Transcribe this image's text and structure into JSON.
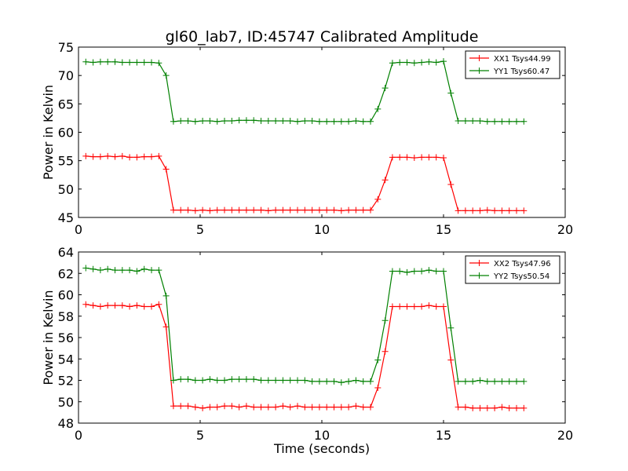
{
  "chart_data": {
    "title": "gl60_lab7, ID:45747 Calibrated Amplitude",
    "xlabel": "Time (seconds)",
    "colors": {
      "xx": "#ff0000",
      "yy": "#008000"
    },
    "x": [
      0.3,
      0.6,
      0.9,
      1.2,
      1.5,
      1.8,
      2.1,
      2.4,
      2.7,
      3.0,
      3.3,
      3.6,
      3.9,
      4.2,
      4.5,
      4.8,
      5.1,
      5.4,
      5.7,
      6.0,
      6.3,
      6.6,
      6.9,
      7.2,
      7.5,
      7.8,
      8.1,
      8.4,
      8.7,
      9.0,
      9.3,
      9.6,
      9.9,
      10.2,
      10.5,
      10.8,
      11.1,
      11.4,
      11.7,
      12.0,
      12.3,
      12.6,
      12.9,
      13.2,
      13.5,
      13.8,
      14.1,
      14.4,
      14.7,
      15.0,
      15.3,
      15.6,
      15.9,
      16.2,
      16.5,
      16.8,
      17.1,
      17.4,
      17.7,
      18.0,
      18.3
    ],
    "charts": [
      {
        "type": "line",
        "ylabel": "Power in Kelvin",
        "xlim": [
          0,
          20
        ],
        "ylim": [
          45,
          75
        ],
        "xticks": [
          "0",
          "5",
          "10",
          "15",
          "20"
        ],
        "xtick_values": [
          0,
          5,
          10,
          15,
          20
        ],
        "yticks": [
          "45",
          "50",
          "55",
          "60",
          "65",
          "70",
          "75"
        ],
        "ytick_values": [
          45,
          50,
          55,
          60,
          65,
          70,
          75
        ],
        "show_xlabel": false,
        "legend_position": "top-right",
        "series": [
          {
            "name": "XX1 Tsys44.99",
            "color_key": "xx",
            "values": [
              55.8,
              55.7,
              55.7,
              55.8,
              55.7,
              55.8,
              55.6,
              55.6,
              55.7,
              55.7,
              55.8,
              53.5,
              46.3,
              46.3,
              46.3,
              46.2,
              46.3,
              46.2,
              46.3,
              46.3,
              46.3,
              46.3,
              46.3,
              46.3,
              46.3,
              46.2,
              46.3,
              46.3,
              46.3,
              46.3,
              46.3,
              46.3,
              46.3,
              46.3,
              46.3,
              46.2,
              46.3,
              46.3,
              46.3,
              46.3,
              48.2,
              51.6,
              55.6,
              55.6,
              55.6,
              55.5,
              55.6,
              55.6,
              55.6,
              55.5,
              50.8,
              46.2,
              46.2,
              46.2,
              46.2,
              46.3,
              46.2,
              46.2,
              46.2,
              46.2,
              46.2
            ]
          },
          {
            "name": "YY1 Tsys60.47",
            "color_key": "yy",
            "values": [
              72.4,
              72.3,
              72.4,
              72.4,
              72.4,
              72.3,
              72.3,
              72.3,
              72.3,
              72.3,
              72.2,
              70.0,
              61.9,
              62.0,
              62.0,
              61.9,
              62.0,
              62.0,
              61.9,
              62.0,
              62.0,
              62.1,
              62.1,
              62.1,
              62.0,
              62.0,
              62.0,
              62.0,
              62.0,
              61.9,
              62.0,
              62.0,
              61.9,
              61.9,
              61.9,
              61.9,
              61.9,
              62.0,
              61.9,
              61.9,
              64.1,
              67.8,
              72.2,
              72.3,
              72.3,
              72.2,
              72.3,
              72.4,
              72.3,
              72.5,
              66.9,
              62.0,
              62.0,
              62.0,
              62.0,
              61.9,
              61.9,
              61.9,
              61.9,
              61.9,
              61.9
            ]
          }
        ]
      },
      {
        "type": "line",
        "ylabel": "Power in Kelvin",
        "xlim": [
          0,
          20
        ],
        "ylim": [
          48,
          64
        ],
        "xticks": [
          "0",
          "5",
          "10",
          "15",
          "20"
        ],
        "xtick_values": [
          0,
          5,
          10,
          15,
          20
        ],
        "yticks": [
          "48",
          "50",
          "52",
          "54",
          "56",
          "58",
          "60",
          "62",
          "64"
        ],
        "ytick_values": [
          48,
          50,
          52,
          54,
          56,
          58,
          60,
          62,
          64
        ],
        "show_xlabel": true,
        "legend_position": "top-right",
        "series": [
          {
            "name": "XX2 Tsys47.96",
            "color_key": "xx",
            "values": [
              59.1,
              59.0,
              58.9,
              59.0,
              59.0,
              59.0,
              58.9,
              59.0,
              58.9,
              58.9,
              59.1,
              57.0,
              49.6,
              49.6,
              49.6,
              49.5,
              49.4,
              49.5,
              49.5,
              49.6,
              49.6,
              49.5,
              49.6,
              49.5,
              49.5,
              49.5,
              49.5,
              49.6,
              49.5,
              49.6,
              49.5,
              49.5,
              49.5,
              49.5,
              49.5,
              49.5,
              49.5,
              49.6,
              49.5,
              49.5,
              51.3,
              54.7,
              58.9,
              58.9,
              58.9,
              58.9,
              58.9,
              59.0,
              58.9,
              58.9,
              53.9,
              49.5,
              49.5,
              49.4,
              49.4,
              49.4,
              49.4,
              49.5,
              49.4,
              49.4,
              49.4
            ]
          },
          {
            "name": "YY2 Tsys50.54",
            "color_key": "yy",
            "values": [
              62.5,
              62.4,
              62.3,
              62.4,
              62.3,
              62.3,
              62.3,
              62.2,
              62.4,
              62.3,
              62.3,
              59.9,
              52.0,
              52.1,
              52.1,
              52.0,
              52.0,
              52.1,
              52.0,
              52.0,
              52.1,
              52.1,
              52.1,
              52.1,
              52.0,
              52.0,
              52.0,
              52.0,
              52.0,
              52.0,
              52.0,
              51.9,
              51.9,
              51.9,
              51.9,
              51.8,
              51.9,
              52.0,
              51.9,
              51.9,
              53.9,
              57.6,
              62.2,
              62.2,
              62.1,
              62.2,
              62.2,
              62.3,
              62.2,
              62.2,
              56.9,
              51.9,
              51.9,
              51.9,
              52.0,
              51.9,
              51.9,
              51.9,
              51.9,
              51.9,
              51.9
            ]
          }
        ]
      }
    ]
  }
}
